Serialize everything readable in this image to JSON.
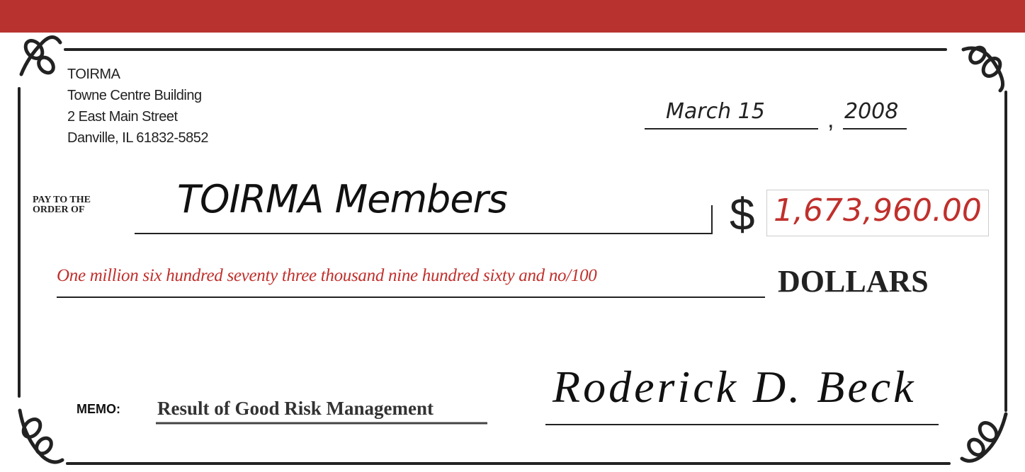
{
  "issuer": {
    "lines": [
      "TOIRMA",
      "Towne Centre Building",
      "2 East Main Street",
      "Danville, IL 61832-5852"
    ]
  },
  "date": {
    "month_day": "March 15",
    "separator": ",",
    "year": "2008"
  },
  "pay_to": {
    "label_lines": [
      "PAY TO THE",
      "ORDER OF"
    ],
    "payee": "TOIRMA Members"
  },
  "amount": {
    "currency_symbol": "$",
    "figure": "1,673,960.00",
    "written": "One million six hundred seventy three thousand nine hundred sixty and no/100",
    "unit": "DOLLARS"
  },
  "memo": {
    "label": "MEMO:",
    "text": "Result of Good Risk Management"
  },
  "signature": "Roderick D. Beck"
}
